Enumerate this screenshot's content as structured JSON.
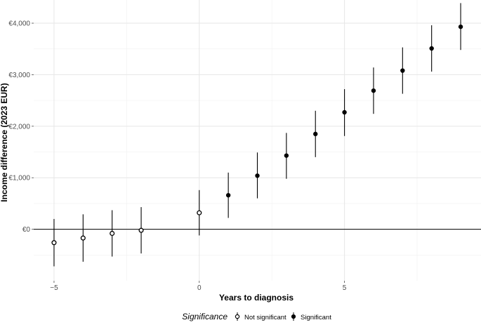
{
  "chart_data": {
    "type": "scatter",
    "title": "",
    "xlabel": "Years to diagnosis",
    "ylabel": "Income difference (2023 EUR)",
    "xlim": [
      -5.7,
      9.7
    ],
    "ylim": [
      -1000,
      4450
    ],
    "x_ticks": [
      -5,
      0,
      5
    ],
    "x_tick_labels": [
      "−5",
      "0",
      "5"
    ],
    "y_ticks": [
      0,
      1000,
      2000,
      3000,
      4000
    ],
    "y_tick_labels": [
      "€0",
      "€1,000",
      "€2,000",
      "€3,000",
      "€4,000"
    ],
    "grid": true,
    "reference_line_y": 0,
    "legend": {
      "title": "Significance",
      "position": "bottom",
      "entries": [
        {
          "label": "Not significant",
          "marker": "open-circle"
        },
        {
          "label": "Significant",
          "marker": "filled-circle"
        }
      ]
    },
    "points": [
      {
        "x": -5,
        "y": -260,
        "lower": -720,
        "upper": 200,
        "significant": false
      },
      {
        "x": -4,
        "y": -170,
        "lower": -630,
        "upper": 290,
        "significant": false
      },
      {
        "x": -3,
        "y": -80,
        "lower": -530,
        "upper": 370,
        "significant": false
      },
      {
        "x": -2,
        "y": -20,
        "lower": -470,
        "upper": 430,
        "significant": false
      },
      {
        "x": 0,
        "y": 320,
        "lower": -120,
        "upper": 760,
        "significant": false
      },
      {
        "x": 1,
        "y": 660,
        "lower": 220,
        "upper": 1100,
        "significant": true
      },
      {
        "x": 2,
        "y": 1040,
        "lower": 600,
        "upper": 1490,
        "significant": true
      },
      {
        "x": 3,
        "y": 1430,
        "lower": 980,
        "upper": 1870,
        "significant": true
      },
      {
        "x": 4,
        "y": 1850,
        "lower": 1400,
        "upper": 2300,
        "significant": true
      },
      {
        "x": 5,
        "y": 2270,
        "lower": 1810,
        "upper": 2720,
        "significant": true
      },
      {
        "x": 6,
        "y": 2690,
        "lower": 2240,
        "upper": 3140,
        "significant": true
      },
      {
        "x": 7,
        "y": 3080,
        "lower": 2630,
        "upper": 3530,
        "significant": true
      },
      {
        "x": 8,
        "y": 3510,
        "lower": 3060,
        "upper": 3960,
        "significant": true
      },
      {
        "x": 9,
        "y": 3930,
        "lower": 3480,
        "upper": 4390,
        "significant": true
      }
    ]
  }
}
